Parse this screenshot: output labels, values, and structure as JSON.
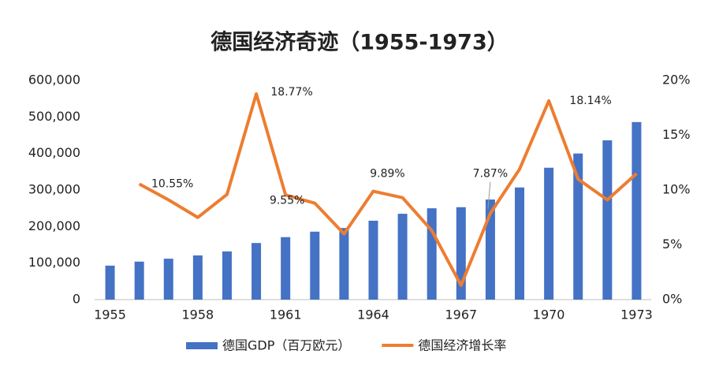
{
  "chart_data": {
    "type": "bar-line",
    "title": "德国经济奇迹（1955-1973）",
    "categories": [
      "1955",
      null,
      null,
      "1958",
      null,
      null,
      "1961",
      null,
      null,
      "1964",
      null,
      null,
      "1967",
      null,
      null,
      "1970",
      null,
      null,
      "1973"
    ],
    "series": [
      {
        "name": "德国GDP（百万欧元）",
        "type": "bar",
        "color": "#4472c4",
        "values": [
          93000,
          104000,
          112000,
          121000,
          132000,
          155000,
          171000,
          186000,
          196000,
          216000,
          235000,
          250000,
          253000,
          274000,
          307000,
          361000,
          400000,
          436000,
          486000
        ]
      },
      {
        "name": "德国经济增长率",
        "type": "line",
        "axis": "y2",
        "color": "#ed7d31",
        "values": [
          null,
          10.55,
          9.1,
          7.5,
          9.6,
          18.77,
          9.55,
          8.8,
          6.0,
          9.89,
          9.3,
          6.3,
          1.3,
          7.87,
          11.9,
          18.14,
          11.0,
          9.1,
          11.5
        ],
        "value_labels": [
          null,
          "10.55%",
          null,
          null,
          null,
          "18.77%",
          "9.55%",
          null,
          null,
          "9.89%",
          null,
          null,
          null,
          "7.87%",
          null,
          "18.14%",
          null,
          null,
          null
        ]
      }
    ],
    "ylim": [
      0,
      600000
    ],
    "yticks": [
      0,
      {
        "value": 100000,
        "label": "100,000"
      },
      {
        "value": 200000,
        "label": "200,000"
      },
      {
        "value": 300000,
        "label": "300,000"
      },
      {
        "value": 400000,
        "label": "400,000"
      },
      {
        "value": 500000,
        "label": "500,000"
      },
      {
        "value": 600000,
        "label": "600,000"
      }
    ],
    "y2lim": [
      0,
      20
    ],
    "y2ticks": [
      {
        "value": 0,
        "label": "0%"
      },
      {
        "value": 5,
        "label": "5%"
      },
      {
        "value": 10,
        "label": "10%"
      },
      {
        "value": 15,
        "label": "15%"
      },
      {
        "value": 20,
        "label": "20%"
      }
    ],
    "legend": "bottom"
  }
}
